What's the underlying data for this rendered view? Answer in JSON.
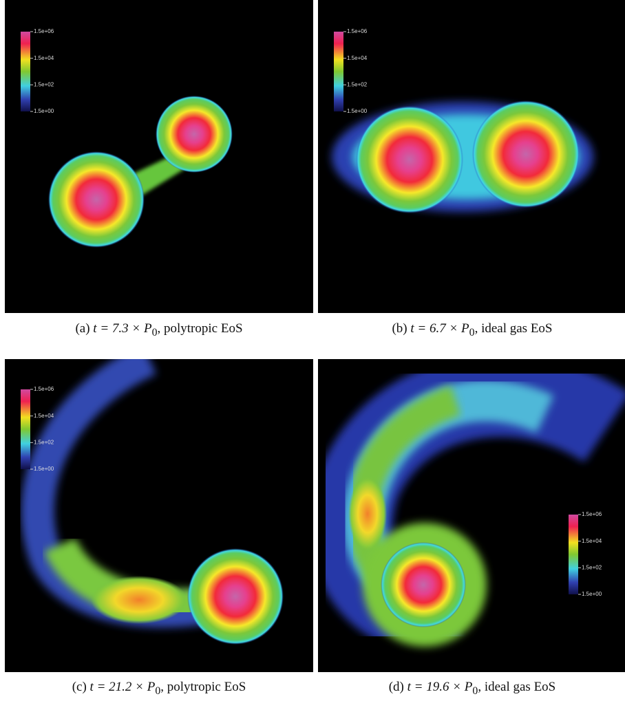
{
  "panels": [
    {
      "colorbar_labels": [
        "1.5e+06",
        "1.5e+04",
        "1.5e+02",
        "1.5e+00"
      ],
      "caption": {
        "label": "(a)",
        "math": "t = 7.3 × P",
        "subscript": "0",
        "text": ", polytropic EoS"
      }
    },
    {
      "colorbar_labels": [
        "1.5e+06",
        "1.5e+04",
        "1.5e+02",
        "1.5e+00"
      ],
      "caption": {
        "label": "(b)",
        "math": "t = 6.7 × P",
        "subscript": "0",
        "text": ", ideal gas EoS"
      }
    },
    {
      "colorbar_labels": [
        "1.5e+06",
        "1.5e+04",
        "1.5e+02",
        "1.5e+00"
      ],
      "caption": {
        "label": "(c)",
        "math": "t = 21.2 × P",
        "subscript": "0",
        "text": ", polytropic EoS"
      }
    },
    {
      "colorbar_labels": [
        "1.5e+06",
        "1.5e+04",
        "1.5e+02",
        "1.5e+00"
      ],
      "caption": {
        "label": "(d)",
        "math": "t = 19.6 × P",
        "subscript": "0",
        "text": ", ideal gas EoS"
      }
    }
  ]
}
